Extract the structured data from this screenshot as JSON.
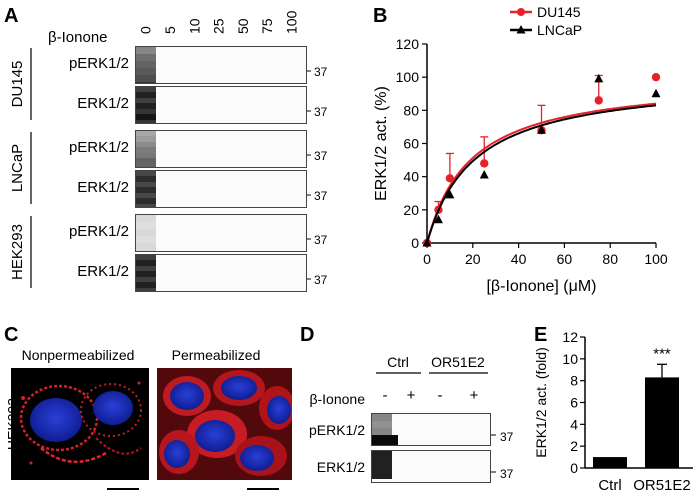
{
  "panels": {
    "A": "A",
    "B": "B",
    "C": "C",
    "D": "D",
    "E": "E"
  },
  "panel_a": {
    "header_label": "β-Ionone",
    "concentrations": [
      "0",
      "5",
      "10",
      "25",
      "50",
      "75",
      "100"
    ],
    "groups": [
      {
        "name": "DU145",
        "rows": [
          {
            "label": "pERK1/2",
            "marker": "37",
            "intensity": [
              0.45,
              0.55,
              0.6,
              0.65,
              0.7,
              0.8,
              0.85
            ],
            "double": false
          },
          {
            "label": "ERK1/2",
            "marker": "37",
            "intensity": [
              0.9,
              0.9,
              0.95,
              0.95,
              0.95,
              0.95,
              0.95
            ],
            "double": true
          }
        ]
      },
      {
        "name": "LNCaP",
        "rows": [
          {
            "label": "pERK1/2",
            "marker": "37",
            "intensity": [
              0.35,
              0.5,
              0.6,
              0.7,
              0.8,
              0.9,
              0.85
            ],
            "double": true
          },
          {
            "label": "ERK1/2",
            "marker": "37",
            "intensity": [
              0.85,
              0.85,
              0.85,
              0.85,
              0.85,
              0.85,
              0.85
            ],
            "double": true
          }
        ]
      },
      {
        "name": "HEK293",
        "rows": [
          {
            "label": "pERK1/2",
            "marker": "37",
            "intensity": [
              0.08,
              0.06,
              0.08,
              0.06,
              0.08,
              0.07,
              0.1
            ],
            "double": false
          },
          {
            "label": "ERK1/2",
            "marker": "37",
            "intensity": [
              0.9,
              0.9,
              0.9,
              0.9,
              0.9,
              0.9,
              0.9
            ],
            "double": true
          }
        ]
      }
    ]
  },
  "panel_c": {
    "cell_label": "HEK293",
    "images": [
      {
        "label": "Nonpermeabilized"
      },
      {
        "label": "Permeabilized"
      }
    ]
  },
  "panel_d": {
    "headers": [
      "Ctrl",
      "OR51E2"
    ],
    "treatment_label": "β-Ionone",
    "signs": [
      "-",
      "+",
      "-",
      "+"
    ],
    "rows": [
      {
        "label": "pERK1/2",
        "marker": "37",
        "intensity": [
          0.45,
          0.4,
          0.45,
          1.0
        ]
      },
      {
        "label": "ERK1/2",
        "marker": "37",
        "intensity": [
          0.9,
          0.9,
          0.9,
          0.9
        ]
      }
    ]
  },
  "chart_data": [
    {
      "type": "scatter",
      "panel": "B",
      "xlabel": "[β-Ionone] (μM)",
      "ylabel": "ERK1/2 act. (%)",
      "xlim": [
        0,
        100
      ],
      "ylim": [
        0,
        120
      ],
      "xticks": [
        0,
        20,
        40,
        60,
        80,
        100
      ],
      "yticks": [
        0,
        20,
        40,
        60,
        80,
        100,
        120
      ],
      "legend_position": "top-right",
      "series": [
        {
          "name": "DU145",
          "color": "#e8202a",
          "marker": "circle",
          "x": [
            0,
            5,
            10,
            25,
            50,
            75,
            100
          ],
          "y": [
            0,
            20,
            39,
            48,
            68,
            86,
            100
          ],
          "err": [
            0,
            5,
            15,
            16,
            15,
            15,
            0
          ],
          "fit": {
            "vmax": 100,
            "ec50": 19
          }
        },
        {
          "name": "LNCaP",
          "color": "#000000",
          "marker": "triangle",
          "x": [
            0,
            5,
            10,
            25,
            50,
            75,
            100
          ],
          "y": [
            0,
            14,
            29,
            41,
            68,
            99,
            90
          ],
          "err": [
            0,
            0,
            0,
            0,
            0,
            0,
            0
          ],
          "fit": {
            "vmax": 100,
            "ec50": 20.5
          }
        }
      ]
    },
    {
      "type": "bar",
      "panel": "E",
      "categories": [
        "Ctrl",
        "OR51E2"
      ],
      "values": [
        1,
        8.3
      ],
      "errors": [
        0,
        1.2
      ],
      "ylabel": "ERK1/2 act. (fold)",
      "ylim": [
        0,
        12
      ],
      "yticks": [
        0,
        2,
        4,
        6,
        8,
        10,
        12
      ],
      "annotation": "***",
      "bar_color": "#000000"
    }
  ]
}
